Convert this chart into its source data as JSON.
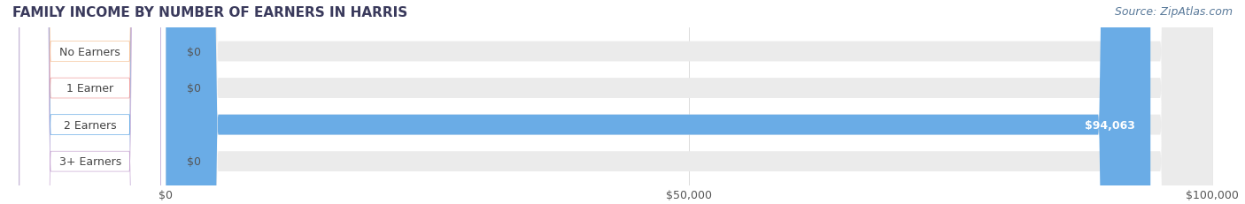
{
  "title": "FAMILY INCOME BY NUMBER OF EARNERS IN HARRIS",
  "source": "Source: ZipAtlas.com",
  "categories": [
    "No Earners",
    "1 Earner",
    "2 Earners",
    "3+ Earners"
  ],
  "values": [
    0,
    0,
    94063,
    0
  ],
  "max_value": 100000,
  "bar_colors": [
    "#f5c49a",
    "#f0a0a0",
    "#6aace6",
    "#c9a8d4"
  ],
  "bar_bg_color": "#ebebeb",
  "label_bg_color": "#ffffff",
  "tick_labels": [
    "$0",
    "$50,000",
    "$100,000"
  ],
  "tick_values": [
    0,
    50000,
    100000
  ],
  "value_labels": [
    "$0",
    "$0",
    "$94,063",
    "$0"
  ],
  "fig_bg_color": "#ffffff",
  "title_color": "#3a3a5c",
  "title_fontsize": 11,
  "source_color": "#5a7a9a",
  "source_fontsize": 9,
  "bar_height": 0.55,
  "bar_label_fontsize": 9,
  "value_label_color_inside": "#ffffff",
  "value_label_color_outside": "#555555",
  "axis_label_color": "#555555",
  "axis_label_fontsize": 9
}
